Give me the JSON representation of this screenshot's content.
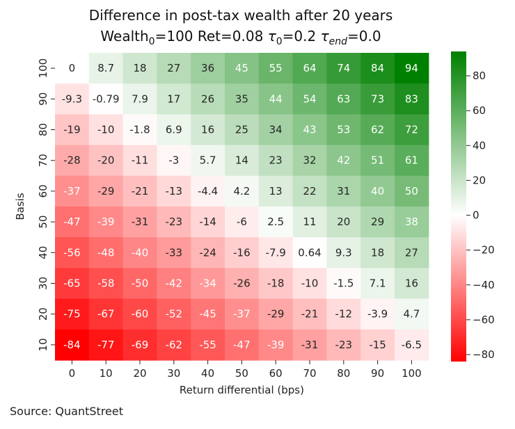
{
  "chart_data": {
    "type": "heatmap",
    "title_line1": "Difference in post-tax wealth after 20 years",
    "title_line2": {
      "parts": [
        {
          "t": "Wealth",
          "s": "n"
        },
        {
          "t": "0",
          "s": "sub"
        },
        {
          "t": "=100  Ret=0.08  ",
          "s": "n"
        },
        {
          "t": "τ",
          "s": "i"
        },
        {
          "t": "0",
          "s": "sub"
        },
        {
          "t": "=0.2  ",
          "s": "n"
        },
        {
          "t": "τ",
          "s": "i"
        },
        {
          "t": "end",
          "s": "subi"
        },
        {
          "t": "=0.0",
          "s": "n"
        }
      ]
    },
    "xlabel": "Return differential (bps)",
    "ylabel": "Basis",
    "x": [
      "0",
      "10",
      "20",
      "30",
      "40",
      "50",
      "60",
      "70",
      "80",
      "90",
      "100"
    ],
    "y": [
      "100",
      "90",
      "80",
      "70",
      "60",
      "50",
      "40",
      "30",
      "20",
      "10"
    ],
    "values": [
      [
        0,
        8.7,
        18,
        27,
        36,
        45,
        55,
        64,
        74,
        84,
        94
      ],
      [
        -9.3,
        -0.79,
        7.9,
        17,
        26,
        35,
        44,
        54,
        63,
        73,
        83
      ],
      [
        -19,
        -10,
        -1.8,
        6.9,
        16,
        25,
        34,
        43,
        53,
        62,
        72
      ],
      [
        -28,
        -20,
        -11,
        -3,
        5.7,
        14,
        23,
        32,
        42,
        51,
        61
      ],
      [
        -37,
        -29,
        -21,
        -13,
        -4.4,
        4.2,
        13,
        22,
        31,
        40,
        50
      ],
      [
        -47,
        -39,
        -31,
        -23,
        -14,
        -6,
        2.5,
        11,
        20,
        29,
        38
      ],
      [
        -56,
        -48,
        -40,
        -33,
        -24,
        -16,
        -7.9,
        0.64,
        9.3,
        18,
        27
      ],
      [
        -65,
        -58,
        -50,
        -42,
        -34,
        -26,
        -18,
        -10,
        -1.5,
        7.1,
        16
      ],
      [
        -75,
        -67,
        -60,
        -52,
        -45,
        -37,
        -29,
        -21,
        -12,
        -3.9,
        4.7
      ],
      [
        -84,
        -77,
        -69,
        -62,
        -55,
        -47,
        -39,
        -31,
        -23,
        -15,
        -6.5
      ]
    ],
    "colorbar": {
      "min": -84,
      "max": 94,
      "ticks": [
        80,
        60,
        40,
        20,
        0,
        -20,
        -40,
        -60,
        -80
      ],
      "tick_labels": [
        "80",
        "60",
        "40",
        "20",
        "0",
        "−20",
        "−40",
        "−60",
        "−80"
      ],
      "colors": {
        "low": "#ff0000",
        "mid": "#ffffff",
        "high": "#008000"
      }
    }
  },
  "source": "Source: QuantStreet"
}
